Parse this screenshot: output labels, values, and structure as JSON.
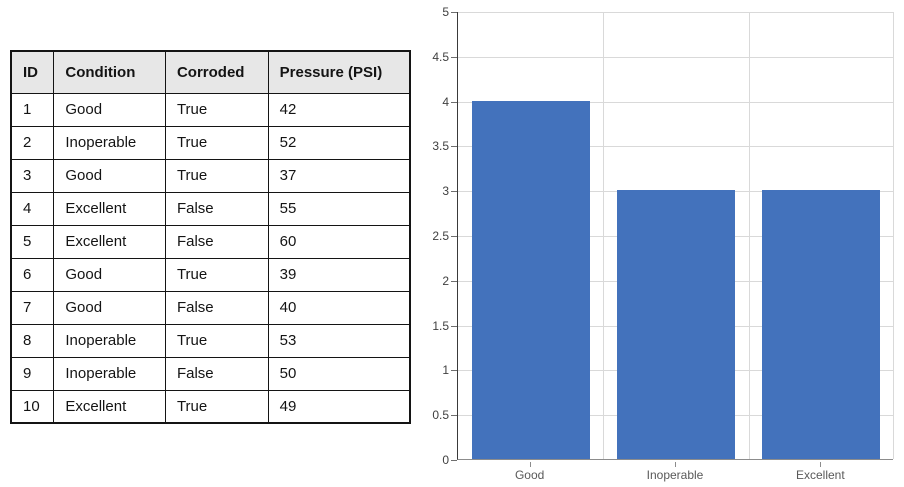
{
  "table": {
    "headers": [
      "ID",
      "Condition",
      "Corroded",
      "Pressure (PSI)"
    ],
    "rows": [
      [
        "1",
        "Good",
        "True",
        "42"
      ],
      [
        "2",
        "Inoperable",
        "True",
        "52"
      ],
      [
        "3",
        "Good",
        "True",
        "37"
      ],
      [
        "4",
        "Excellent",
        "False",
        "55"
      ],
      [
        "5",
        "Excellent",
        "False",
        "60"
      ],
      [
        "6",
        "Good",
        "True",
        "39"
      ],
      [
        "7",
        "Good",
        "False",
        "40"
      ],
      [
        "8",
        "Inoperable",
        "True",
        "53"
      ],
      [
        "9",
        "Inoperable",
        "False",
        "50"
      ],
      [
        "10",
        "Excellent",
        "True",
        "49"
      ]
    ]
  },
  "chart_data": {
    "type": "bar",
    "categories": [
      "Good",
      "Inoperable",
      "Excellent"
    ],
    "values": [
      4,
      3,
      3
    ],
    "title": "",
    "xlabel": "",
    "ylabel": "",
    "ylim": [
      0,
      5
    ],
    "ytick_step": 0.5,
    "ytick_labels": [
      "0",
      "0.5",
      "1",
      "1.5",
      "2",
      "2.5",
      "3",
      "3.5",
      "4",
      "4.5",
      "5"
    ],
    "grid": true,
    "legend": false
  },
  "colors": {
    "bar_fill": "#4372BC",
    "gridline": "#d9d9d9",
    "table_header_bg": "#e7e7e7",
    "table_border": "#141414",
    "y_axis": "#3a3a3a",
    "x_axis": "#8c8c8c",
    "tick_text": "#404040",
    "category_text": "#595959"
  }
}
